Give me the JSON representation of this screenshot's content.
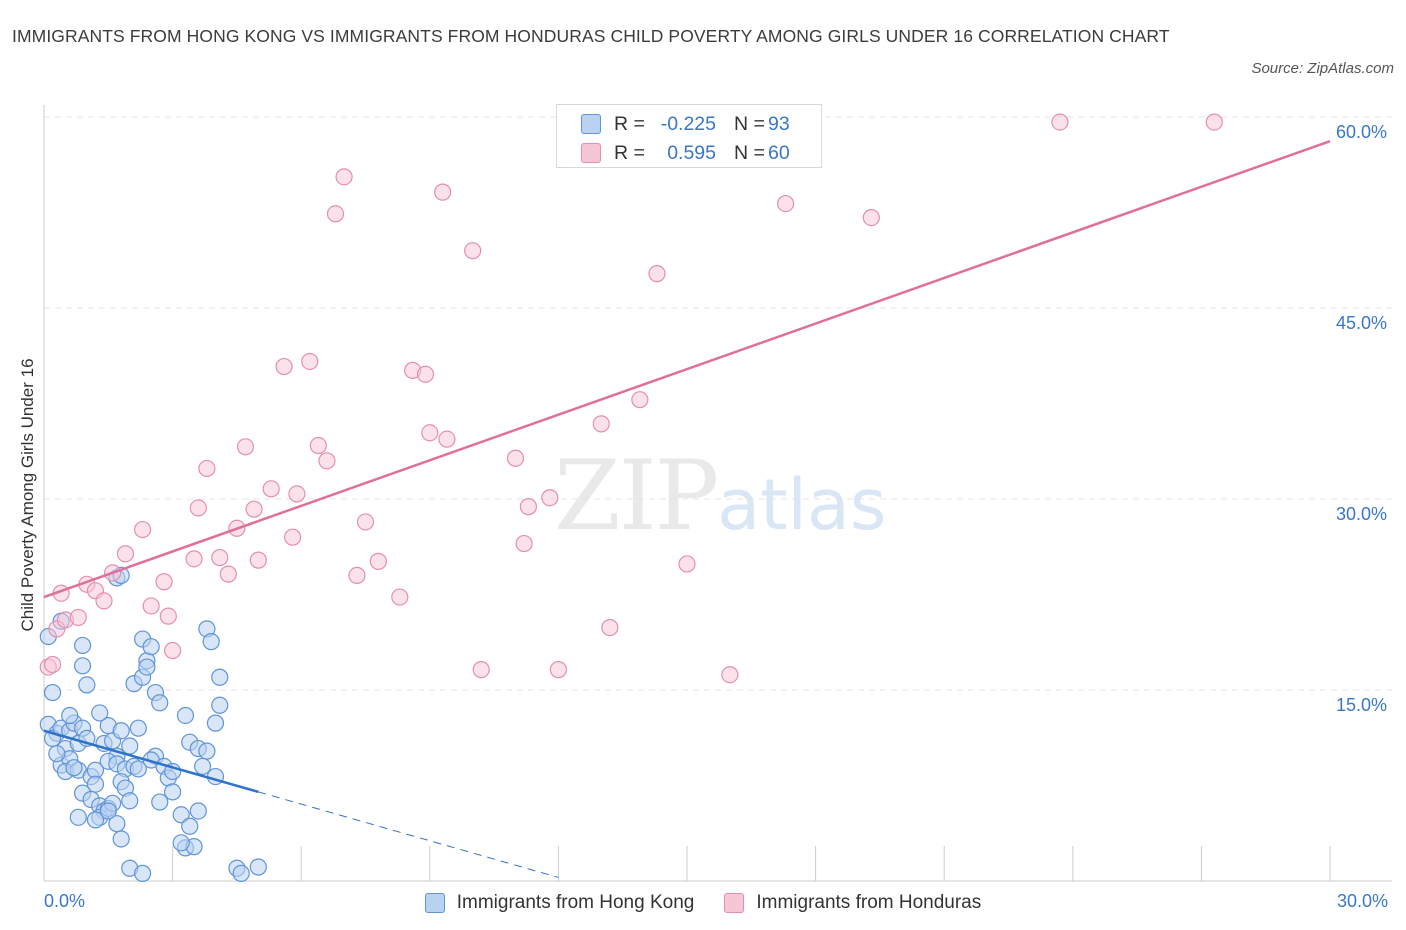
{
  "title": "IMMIGRANTS FROM HONG KONG VS IMMIGRANTS FROM HONDURAS CHILD POVERTY AMONG GIRLS UNDER 16 CORRELATION CHART",
  "source": "Source: ZipAtlas.com",
  "watermark": {
    "zip": "ZIP",
    "atlas": "atlas"
  },
  "colors": {
    "hong_kong_fill": "#b9d2f1",
    "hong_kong_stroke": "#5f94d9",
    "hong_kong_line": "#2f73c9",
    "honduras_fill": "#f7c6d6",
    "honduras_stroke": "#e58fad",
    "honduras_line": "#e0709a",
    "grid": "#e4e4e4",
    "axis_label": "#3a77c8"
  },
  "legend": [
    {
      "r_label": "R =",
      "r_value": "-0.225",
      "n_label": "N =",
      "n_value": "93"
    },
    {
      "r_label": "R =",
      "r_value": "0.595",
      "n_label": "N =",
      "n_value": "60"
    }
  ],
  "chart_data": {
    "type": "scatter",
    "title": "IMMIGRANTS FROM HONG KONG VS IMMIGRANTS FROM HONDURAS CHILD POVERTY AMONG GIRLS UNDER 16 CORRELATION CHART",
    "xlabel": "",
    "ylabel": "Child Poverty Among Girls Under 16",
    "xlim": [
      0,
      30
    ],
    "ylim": [
      0,
      60
    ],
    "x_tick_labels": [
      "0.0%",
      "30.0%"
    ],
    "y_tick_labels": [
      "15.0%",
      "30.0%",
      "45.0%",
      "60.0%"
    ],
    "y_ticks": [
      15,
      30,
      45,
      60
    ],
    "series": [
      {
        "name": "Immigrants from Hong Kong",
        "r": -0.225,
        "n": 93,
        "trend": {
          "x0": 0,
          "y0": 11.8,
          "x1": 5.0,
          "y1": 7.0,
          "dash_to_x": 12.0
        },
        "points": [
          [
            0.1,
            19.2
          ],
          [
            0.2,
            14.8
          ],
          [
            0.1,
            12.3
          ],
          [
            0.3,
            11.6
          ],
          [
            0.2,
            11.2
          ],
          [
            0.4,
            12.0
          ],
          [
            0.5,
            10.4
          ],
          [
            0.6,
            11.8
          ],
          [
            0.4,
            9.1
          ],
          [
            0.6,
            9.6
          ],
          [
            0.8,
            10.8
          ],
          [
            0.7,
            12.4
          ],
          [
            0.9,
            12.0
          ],
          [
            0.5,
            8.6
          ],
          [
            0.8,
            8.7
          ],
          [
            1.0,
            11.2
          ],
          [
            1.1,
            8.2
          ],
          [
            1.2,
            8.7
          ],
          [
            1.2,
            7.6
          ],
          [
            0.9,
            6.9
          ],
          [
            1.1,
            6.4
          ],
          [
            1.3,
            5.9
          ],
          [
            1.4,
            5.5
          ],
          [
            1.3,
            5.0
          ],
          [
            0.8,
            5.0
          ],
          [
            1.2,
            4.8
          ],
          [
            1.5,
            5.7
          ],
          [
            1.6,
            6.1
          ],
          [
            1.7,
            4.5
          ],
          [
            1.8,
            3.3
          ],
          [
            1.4,
            10.8
          ],
          [
            1.5,
            12.2
          ],
          [
            1.6,
            11.0
          ],
          [
            1.7,
            9.8
          ],
          [
            1.5,
            9.4
          ],
          [
            1.7,
            9.2
          ],
          [
            1.9,
            8.8
          ],
          [
            1.8,
            7.8
          ],
          [
            1.9,
            7.3
          ],
          [
            2.0,
            6.3
          ],
          [
            2.1,
            9.0
          ],
          [
            2.2,
            8.8
          ],
          [
            2.0,
            10.6
          ],
          [
            1.8,
            11.8
          ],
          [
            2.2,
            12.0
          ],
          [
            2.1,
            15.5
          ],
          [
            2.3,
            16.0
          ],
          [
            2.4,
            17.3
          ],
          [
            2.3,
            19.0
          ],
          [
            2.5,
            18.4
          ],
          [
            2.4,
            16.8
          ],
          [
            2.6,
            14.8
          ],
          [
            2.7,
            14.0
          ],
          [
            2.6,
            9.8
          ],
          [
            2.5,
            9.5
          ],
          [
            2.8,
            9.0
          ],
          [
            2.9,
            8.1
          ],
          [
            3.0,
            8.6
          ],
          [
            2.7,
            6.2
          ],
          [
            3.0,
            7.0
          ],
          [
            3.2,
            5.2
          ],
          [
            3.4,
            4.3
          ],
          [
            3.3,
            2.6
          ],
          [
            3.5,
            2.7
          ],
          [
            3.6,
            5.5
          ],
          [
            3.3,
            13.0
          ],
          [
            3.4,
            10.9
          ],
          [
            3.6,
            10.4
          ],
          [
            3.8,
            10.2
          ],
          [
            3.7,
            9.0
          ],
          [
            4.0,
            8.2
          ],
          [
            4.0,
            12.4
          ],
          [
            4.1,
            13.8
          ],
          [
            4.1,
            16.0
          ],
          [
            3.8,
            19.8
          ],
          [
            3.9,
            18.8
          ],
          [
            3.2,
            3.0
          ],
          [
            2.0,
            1.0
          ],
          [
            2.3,
            0.6
          ],
          [
            4.5,
            1.0
          ],
          [
            4.6,
            0.6
          ],
          [
            5.0,
            1.1
          ],
          [
            0.4,
            20.4
          ],
          [
            0.9,
            18.5
          ],
          [
            0.9,
            16.9
          ],
          [
            1.7,
            23.8
          ],
          [
            1.8,
            24.0
          ],
          [
            0.6,
            13.0
          ],
          [
            1.0,
            15.4
          ],
          [
            1.3,
            13.2
          ],
          [
            0.3,
            10.0
          ],
          [
            0.7,
            8.9
          ],
          [
            1.5,
            5.5
          ]
        ]
      },
      {
        "name": "Immigrants from Honduras",
        "r": 0.595,
        "n": 60,
        "trend": {
          "x0": 0,
          "y0": 22.3,
          "x1": 30.0,
          "y1": 58.1
        },
        "points": [
          [
            0.1,
            16.8
          ],
          [
            0.3,
            19.8
          ],
          [
            0.5,
            20.5
          ],
          [
            0.8,
            20.7
          ],
          [
            1.0,
            23.3
          ],
          [
            1.2,
            22.8
          ],
          [
            1.4,
            22.0
          ],
          [
            1.6,
            24.2
          ],
          [
            1.9,
            25.7
          ],
          [
            2.3,
            27.6
          ],
          [
            2.5,
            21.6
          ],
          [
            2.8,
            23.5
          ],
          [
            2.9,
            20.8
          ],
          [
            3.0,
            18.1
          ],
          [
            3.5,
            25.3
          ],
          [
            3.6,
            29.3
          ],
          [
            3.8,
            32.4
          ],
          [
            4.1,
            25.4
          ],
          [
            4.3,
            24.1
          ],
          [
            4.5,
            27.7
          ],
          [
            4.7,
            34.1
          ],
          [
            4.9,
            29.2
          ],
          [
            5.0,
            25.2
          ],
          [
            5.3,
            30.8
          ],
          [
            5.6,
            40.4
          ],
          [
            5.8,
            27.0
          ],
          [
            5.9,
            30.4
          ],
          [
            6.2,
            40.8
          ],
          [
            6.4,
            34.2
          ],
          [
            6.6,
            33.0
          ],
          [
            6.8,
            52.4
          ],
          [
            7.0,
            55.3
          ],
          [
            7.3,
            24.0
          ],
          [
            7.5,
            28.2
          ],
          [
            7.8,
            25.1
          ],
          [
            8.3,
            22.3
          ],
          [
            8.6,
            40.1
          ],
          [
            8.9,
            39.8
          ],
          [
            9.0,
            35.2
          ],
          [
            9.4,
            34.7
          ],
          [
            9.3,
            54.1
          ],
          [
            10.0,
            49.5
          ],
          [
            10.2,
            16.6
          ],
          [
            11.0,
            33.2
          ],
          [
            11.2,
            26.5
          ],
          [
            11.3,
            29.4
          ],
          [
            11.8,
            30.1
          ],
          [
            12.0,
            16.6
          ],
          [
            13.0,
            35.9
          ],
          [
            13.2,
            19.9
          ],
          [
            13.9,
            37.8
          ],
          [
            14.3,
            47.7
          ],
          [
            15.0,
            24.9
          ],
          [
            16.0,
            16.2
          ],
          [
            17.3,
            53.2
          ],
          [
            19.3,
            52.1
          ],
          [
            23.7,
            59.6
          ],
          [
            27.3,
            59.6
          ],
          [
            0.2,
            17.0
          ],
          [
            0.4,
            22.6
          ]
        ]
      }
    ]
  }
}
